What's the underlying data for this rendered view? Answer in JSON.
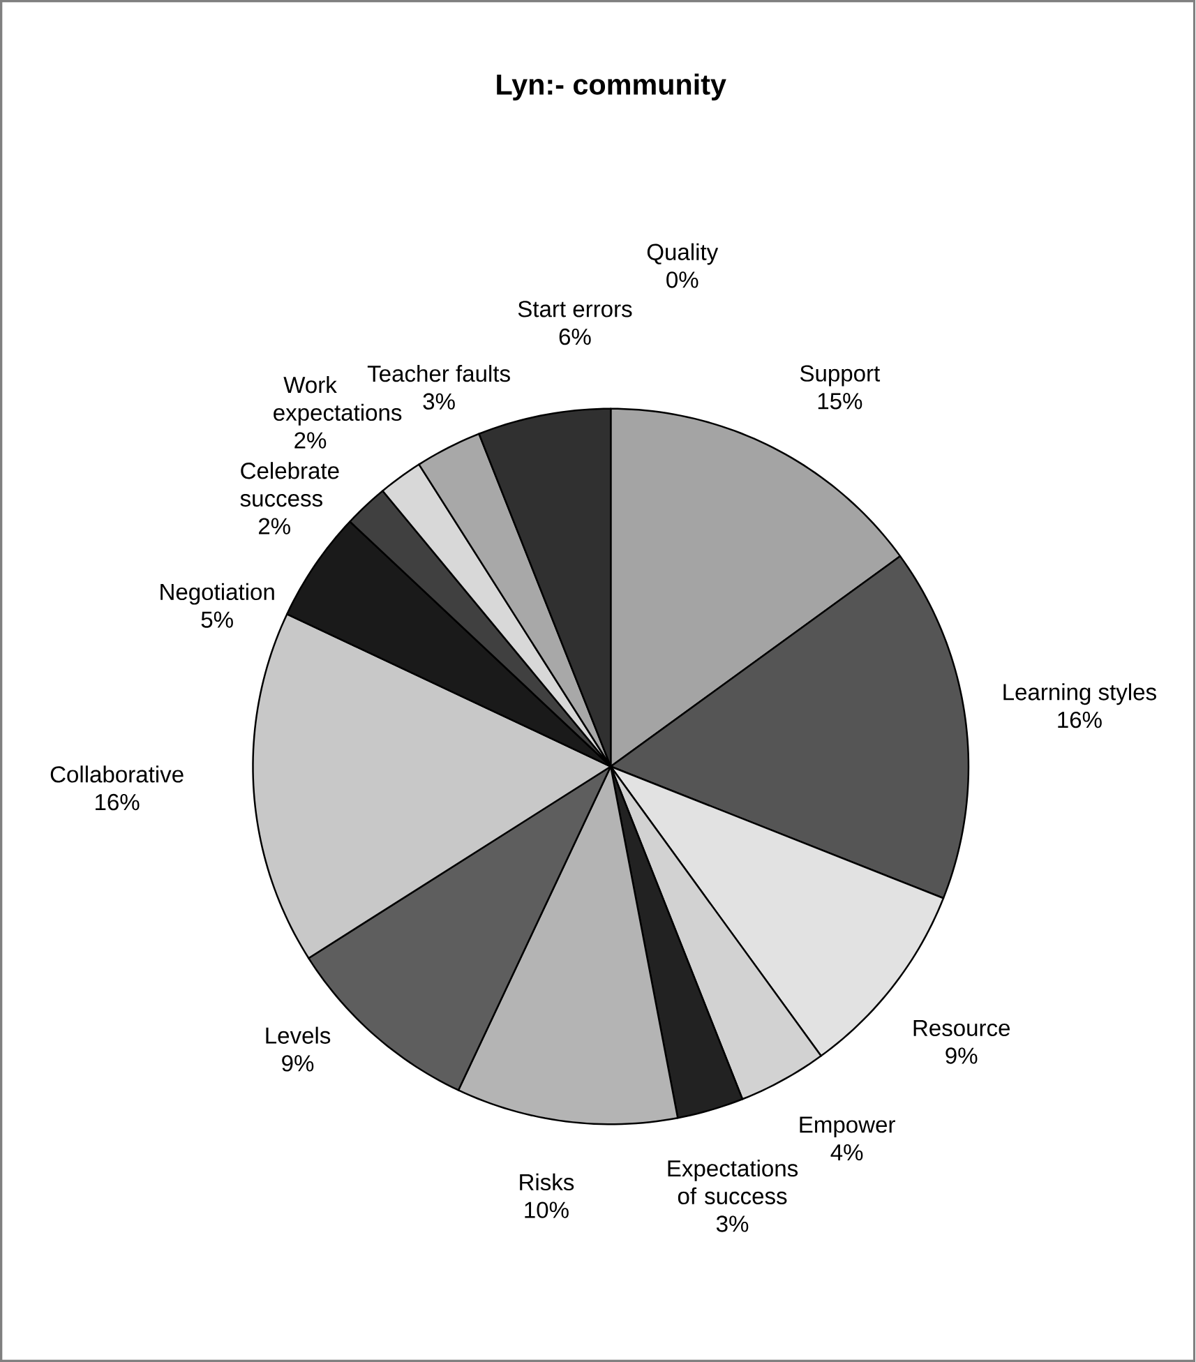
{
  "chart_data": {
    "type": "pie",
    "title": "Lyn:- community",
    "categories": [
      "Support",
      "Learning styles",
      "Resource",
      "Empower",
      "Expectations of success",
      "Risks",
      "Levels",
      "Collaborative",
      "Negotiation",
      "Celebrate success",
      "Work expectations",
      "Teacher faults",
      "Start errors",
      "Quality"
    ],
    "values": [
      15,
      16,
      9,
      4,
      3,
      10,
      9,
      16,
      5,
      2,
      2,
      3,
      6,
      0
    ],
    "value_labels": [
      "15%",
      "16%",
      "9%",
      "4%",
      "3%",
      "10%",
      "9%",
      "16%",
      "5%",
      "2%",
      "2%",
      "3%",
      "6%",
      "0%"
    ],
    "colors": [
      "#a4a4a4",
      "#555555",
      "#e2e2e2",
      "#d2d2d2",
      "#222222",
      "#b4b4b4",
      "#5e5e5e",
      "#c8c8c8",
      "#1a1a1a",
      "#404040",
      "#d8d8d8",
      "#a8a8a8",
      "#303030",
      "#ffffff"
    ]
  }
}
